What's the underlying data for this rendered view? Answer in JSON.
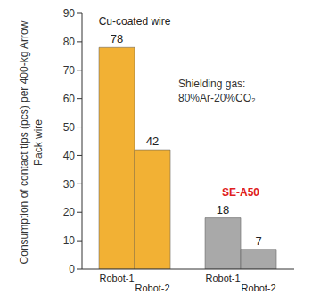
{
  "chart_data": {
    "type": "bar",
    "categories": [
      "Cu-coated wire",
      "SE-A50"
    ],
    "series": [
      {
        "name": "Robot-1",
        "colors": [
          "#f2b134",
          "#a9a9a9"
        ],
        "values": [
          78,
          18
        ]
      },
      {
        "name": "Robot-2",
        "colors": [
          "#f2b134",
          "#a9a9a9"
        ],
        "values": [
          42,
          7
        ]
      }
    ],
    "y_label": "Consumption of contact tips (pcs) per 400-kg Arrow Pack wire",
    "annotation": "Shielding gas: 80%Ar-20%CO₂",
    "ylim": [
      0,
      90
    ],
    "yticks": [
      0,
      10,
      20,
      30,
      40,
      50,
      60,
      70,
      80,
      90
    ],
    "grid": false,
    "data_labels": true
  }
}
